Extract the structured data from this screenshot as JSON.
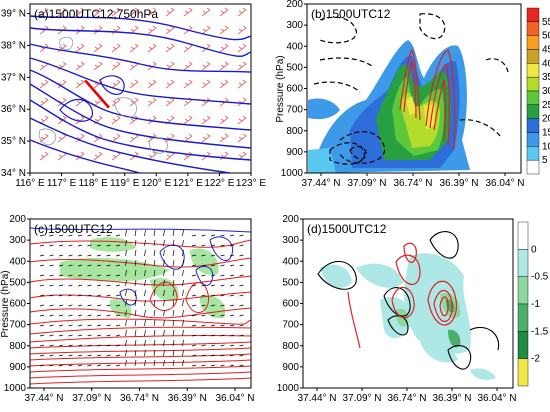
{
  "chart_data": [
    {
      "type": "map",
      "panel": "a",
      "title": "(a)1500UTC12,750hPa",
      "x_ticks": [
        "116° E",
        "117° E",
        "118° E",
        "119° E",
        "120° E",
        "121° E",
        "122° E",
        "123° E"
      ],
      "y_ticks": [
        "39° N",
        "38° N",
        "37° N",
        "36° N",
        "35° N",
        "34° N"
      ],
      "xlim": [
        116,
        123
      ],
      "ylim": [
        34,
        39.3
      ],
      "cross_section_line": {
        "start": [
          117.75,
          36.9
        ],
        "end": [
          118.5,
          36.05
        ]
      },
      "colors": {
        "contour": "#1a1acc",
        "wind": "#e03030",
        "terrain": "#888888",
        "section": "#ee0000"
      }
    },
    {
      "type": "heatmap",
      "panel": "b",
      "title": "(b)1500UTC12",
      "ylabel": "Pressure (hPa)",
      "x_ticks": [
        "37.44° N",
        "37.09° N",
        "36.74° N",
        "36.39° N",
        "36.04° N"
      ],
      "y_ticks": [
        200,
        300,
        400,
        500,
        600,
        700,
        800,
        900,
        1000
      ],
      "ylim": [
        1000,
        200
      ],
      "colorbar": {
        "labels": [
          "55",
          "50",
          "45",
          "40",
          "35",
          "30",
          "25",
          "20",
          "15",
          "10",
          "5"
        ],
        "colors": [
          "#e8281e",
          "#f26421",
          "#f7a01d",
          "#c9a227",
          "#f0e646",
          "#b4dc2c",
          "#5cc83c",
          "#26a040",
          "#2e6ed8",
          "#3c9ae8",
          "#58c8f0",
          "#ffffff"
        ]
      }
    },
    {
      "type": "heatmap",
      "panel": "c",
      "title": "(c)1500UTC12",
      "ylabel": "Pressure (hPa)",
      "x_ticks": [
        "37.44° N",
        "37.09° N",
        "36.74° N",
        "36.39° N",
        "36.04° N"
      ],
      "y_ticks": [
        200,
        300,
        400,
        500,
        600,
        700,
        800,
        900,
        1000
      ],
      "ylim": [
        1000,
        200
      ],
      "colors": {
        "shading": "#a6e6a0",
        "red_contour": "#e02020",
        "blue_contour": "#2020d0",
        "vectors": "#000000"
      }
    },
    {
      "type": "heatmap",
      "panel": "d",
      "title": "(d)1500UTC12",
      "x_ticks": [
        "37.44° N",
        "37.09° N",
        "36.74° N",
        "36.39° N",
        "36.04° N"
      ],
      "y_ticks": [
        200,
        300,
        400,
        500,
        600,
        700,
        800,
        900,
        1000
      ],
      "ylim": [
        1000,
        200
      ],
      "colorbar": {
        "labels": [
          "0",
          "-0.5",
          "-1",
          "-1.5",
          "-2"
        ],
        "colors": [
          "#ffffff",
          "#aee8e6",
          "#8cd8a0",
          "#4caf6a",
          "#1e8c46",
          "#f0e646"
        ]
      }
    }
  ]
}
